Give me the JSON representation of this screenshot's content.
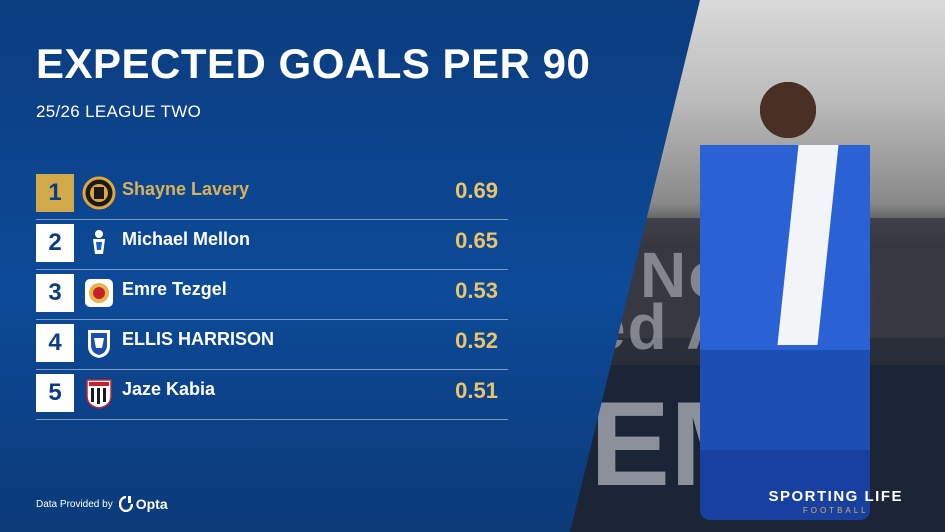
{
  "title": "EXPECTED GOALS PER 90",
  "subtitle": "25/26 LEAGUE TWO",
  "rows": [
    {
      "rank": "1",
      "name": "Shayne Lavery",
      "value": "0.69",
      "crest": "cambridge-crest-icon"
    },
    {
      "rank": "2",
      "name": "Michael Mellon",
      "value": "0.65",
      "crest": "oldham-crest-icon"
    },
    {
      "rank": "3",
      "name": "Emre Tezgel",
      "value": "0.53",
      "crest": "crewe-crest-icon"
    },
    {
      "rank": "4",
      "name": "ELLIS HARRISON",
      "value": "0.52",
      "crest": "bristol-rovers-crest-icon"
    },
    {
      "rank": "5",
      "name": "Jaze Kabia",
      "value": "0.51",
      "crest": "grimsby-crest-icon"
    }
  ],
  "credit": {
    "label": "Data Provided by",
    "provider": "Opta"
  },
  "brand": {
    "name": "SPORTING LIFE",
    "sub": "FOOTBALL"
  },
  "photo": {
    "banner_top": "Not",
    "banner_top_2": "ed Arr",
    "banner_bottom": "EME"
  },
  "colors": {
    "panel": "#0b3d80",
    "gold": "#d1a94a",
    "value": "#e9c46a"
  }
}
